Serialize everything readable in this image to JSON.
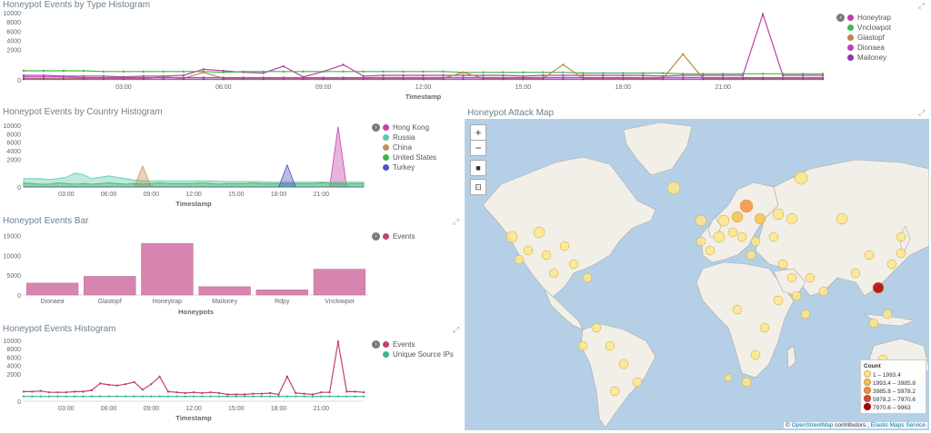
{
  "colors": {
    "honeytrap": "#c13fa4",
    "vnclowpot": "#3cbb4a",
    "glastopf": "#bb8940",
    "dionaea": "#b345c8",
    "mailoney": "#8a3aa8",
    "hongkong": "#c044ab",
    "russia": "#5cc8b0",
    "china": "#c8905a",
    "unitedstates": "#40b64a",
    "turkey": "#4a56c4",
    "bar": "#d585b0",
    "events": "#c43f75",
    "uniqueips": "#37b98a"
  },
  "panels": {
    "type_histogram": {
      "title": "Honeypot Events by Type Histogram",
      "xlabel": "Timestamp",
      "yticks": [
        "10000",
        "8000",
        "6000",
        "4000",
        "2000",
        "0"
      ],
      "xticks": [
        "03:00",
        "06:00",
        "09:00",
        "12:00",
        "15:00",
        "18:00",
        "21:00"
      ],
      "legend": [
        "Honeytrap",
        "Vnclowpot",
        "Glastopf",
        "Dionaea",
        "Mailoney"
      ]
    },
    "country_histogram": {
      "title": "Honeypot Events by Country Histogram",
      "xlabel": "Timestamp",
      "yticks": [
        "10000",
        "8000",
        "6000",
        "4000",
        "2000",
        "0"
      ],
      "xticks": [
        "03:00",
        "06:00",
        "09:00",
        "12:00",
        "15:00",
        "18:00",
        "21:00"
      ],
      "legend": [
        "Hong Kong",
        "Russia",
        "China",
        "United States",
        "Turkey"
      ]
    },
    "events_bar": {
      "title": "Honeypot Events Bar",
      "xlabel": "Honeypots",
      "yticks": [
        "15000",
        "10000",
        "5000",
        "0"
      ],
      "legend": [
        "Events"
      ]
    },
    "events_histogram": {
      "title": "Honeypot Events Histogram",
      "xlabel": "Timestamp",
      "yticks": [
        "10000",
        "8000",
        "6000",
        "4000",
        "2000",
        "0"
      ],
      "xticks": [
        "03:00",
        "06:00",
        "09:00",
        "12:00",
        "15:00",
        "18:00",
        "21:00"
      ],
      "legend": [
        "Events",
        "Unique Source IPs"
      ]
    },
    "attack_map": {
      "title": "Honeypot Attack Map",
      "zoom_in": "+",
      "zoom_out": "−",
      "legend_title": "Count",
      "legend": [
        {
          "label": "1 – 1993.4",
          "color": "#fde68a"
        },
        {
          "label": "1993.4 – 3985.8",
          "color": "#f8bf54"
        },
        {
          "label": "3985.8 – 5978.2",
          "color": "#f3903f"
        },
        {
          "label": "5978.2 – 7970.6",
          "color": "#e34a33"
        },
        {
          "label": "7970.6 – 9963",
          "color": "#b30000"
        }
      ],
      "attribution_prefix": "© ",
      "attribution_osm": "OpenStreetMap",
      "attribution_mid": " contributors , ",
      "attribution_ems": "Elastic Maps Service"
    }
  },
  "chart_data": [
    {
      "type": "line",
      "title": "Honeypot Events by Type Histogram",
      "xlabel": "Timestamp",
      "ylim": [
        0,
        10000
      ],
      "series": [
        {
          "name": "Honeytrap",
          "values": [
            300,
            300,
            250,
            250,
            250,
            200,
            250,
            250,
            300,
            700,
            600,
            500,
            450,
            900,
            200,
            550,
            1000,
            250,
            300,
            300,
            300,
            300,
            300,
            300,
            300,
            250,
            300,
            300,
            300,
            300,
            300,
            300,
            250,
            300,
            300,
            300,
            300,
            9700,
            300,
            300,
            300
          ]
        },
        {
          "name": "Vnclowpot",
          "values": [
            600,
            600,
            600,
            600,
            550,
            550,
            550,
            550,
            550,
            550,
            500,
            550,
            550,
            550,
            550,
            550,
            550,
            550,
            550,
            550,
            550,
            550,
            500,
            500,
            500,
            500,
            500,
            500,
            450,
            450,
            450,
            450,
            450,
            400,
            400,
            400,
            400,
            400,
            400,
            400,
            400
          ]
        },
        {
          "name": "Glastopf",
          "values": [
            100,
            100,
            100,
            100,
            100,
            100,
            100,
            200,
            100,
            500,
            100,
            100,
            100,
            100,
            100,
            100,
            100,
            100,
            100,
            100,
            100,
            100,
            500,
            100,
            100,
            100,
            100,
            1000,
            100,
            100,
            100,
            100,
            100,
            1700,
            100,
            100,
            100,
            100,
            100,
            100,
            100
          ]
        },
        {
          "name": "Dionaea",
          "values": [
            200,
            200,
            200,
            150,
            150,
            150,
            150,
            150,
            150,
            150,
            150,
            150,
            150,
            150,
            150,
            150,
            150,
            150,
            150,
            150,
            150,
            150,
            150,
            150,
            150,
            150,
            150,
            150,
            150,
            150,
            150,
            150,
            150,
            150,
            150,
            150,
            150,
            150,
            150,
            150,
            150
          ]
        },
        {
          "name": "Mailoney",
          "values": [
            50,
            50,
            50,
            50,
            50,
            50,
            50,
            50,
            50,
            50,
            50,
            50,
            50,
            50,
            50,
            50,
            50,
            50,
            50,
            50,
            50,
            50,
            50,
            50,
            50,
            50,
            50,
            50,
            50,
            50,
            50,
            50,
            50,
            50,
            50,
            50,
            50,
            50,
            50,
            50,
            50
          ]
        }
      ]
    },
    {
      "type": "area",
      "title": "Honeypot Events by Country Histogram",
      "xlabel": "Timestamp",
      "ylim": [
        0,
        10000
      ],
      "series": [
        {
          "name": "Hong Kong",
          "values": [
            0,
            0,
            0,
            0,
            0,
            0,
            0,
            0,
            0,
            0,
            0,
            0,
            0,
            0,
            0,
            0,
            0,
            0,
            0,
            0,
            0,
            0,
            0,
            0,
            0,
            0,
            0,
            0,
            0,
            0,
            0,
            0,
            0,
            0,
            0,
            0,
            0,
            9700,
            0,
            0,
            0
          ]
        },
        {
          "name": "Russia",
          "values": [
            600,
            600,
            600,
            550,
            600,
            700,
            1000,
            900,
            600,
            700,
            800,
            700,
            600,
            500,
            450,
            450,
            450,
            450,
            450,
            450,
            450,
            450,
            450,
            400,
            400,
            400,
            400,
            400,
            400,
            350,
            350,
            350,
            350,
            350,
            350,
            350,
            350,
            350,
            350,
            350,
            350
          ]
        },
        {
          "name": "China",
          "values": [
            0,
            0,
            0,
            0,
            0,
            0,
            0,
            0,
            0,
            0,
            0,
            0,
            0,
            0,
            1500,
            0,
            0,
            0,
            0,
            0,
            0,
            0,
            0,
            0,
            0,
            0,
            0,
            0,
            0,
            0,
            0,
            0,
            0,
            0,
            0,
            0,
            0,
            0,
            0,
            0,
            0
          ]
        },
        {
          "name": "United States",
          "values": [
            300,
            250,
            200,
            200,
            300,
            250,
            200,
            250,
            200,
            250,
            300,
            250,
            200,
            250,
            200,
            250,
            300,
            250,
            250,
            250,
            250,
            300,
            250,
            200,
            250,
            250,
            250,
            300,
            250,
            250,
            250,
            250,
            250,
            250,
            250,
            300,
            250,
            250,
            250,
            250,
            250
          ]
        },
        {
          "name": "Turkey",
          "values": [
            0,
            0,
            0,
            0,
            0,
            0,
            0,
            0,
            0,
            0,
            0,
            0,
            0,
            0,
            0,
            0,
            0,
            0,
            0,
            0,
            0,
            0,
            0,
            0,
            0,
            0,
            0,
            0,
            0,
            0,
            0,
            1600,
            0,
            0,
            0,
            0,
            0,
            0,
            0,
            0,
            0
          ]
        }
      ]
    },
    {
      "type": "bar",
      "title": "Honeypot Events Bar",
      "xlabel": "Honeypots",
      "categories": [
        "Dionaea",
        "Glastopf",
        "Honeytrap",
        "Mailoney",
        "Rdpy",
        "Vnclowpot"
      ],
      "values": [
        3000,
        4700,
        13000,
        2100,
        1300,
        6500
      ],
      "ylim": [
        0,
        16000
      ],
      "series": [
        {
          "name": "Events",
          "values": [
            3000,
            4700,
            13000,
            2100,
            1300,
            6500
          ]
        }
      ]
    },
    {
      "type": "line",
      "title": "Honeypot Events Histogram",
      "xlabel": "Timestamp",
      "ylim": [
        0,
        10000
      ],
      "series": [
        {
          "name": "Events",
          "values": [
            700,
            700,
            750,
            650,
            650,
            650,
            700,
            700,
            800,
            1300,
            1200,
            1150,
            1250,
            1400,
            850,
            1250,
            1800,
            700,
            650,
            600,
            650,
            600,
            650,
            600,
            500,
            500,
            500,
            550,
            550,
            600,
            500,
            1800,
            600,
            550,
            500,
            650,
            650,
            9700,
            700,
            700,
            650
          ]
        },
        {
          "name": "Unique Source IPs",
          "values": [
            350,
            350,
            350,
            350,
            350,
            350,
            350,
            350,
            350,
            350,
            350,
            350,
            350,
            350,
            350,
            350,
            350,
            350,
            350,
            350,
            350,
            350,
            350,
            350,
            350,
            350,
            350,
            350,
            350,
            350,
            350,
            350,
            350,
            350,
            350,
            350,
            350,
            350,
            350,
            350,
            350
          ]
        }
      ]
    }
  ]
}
